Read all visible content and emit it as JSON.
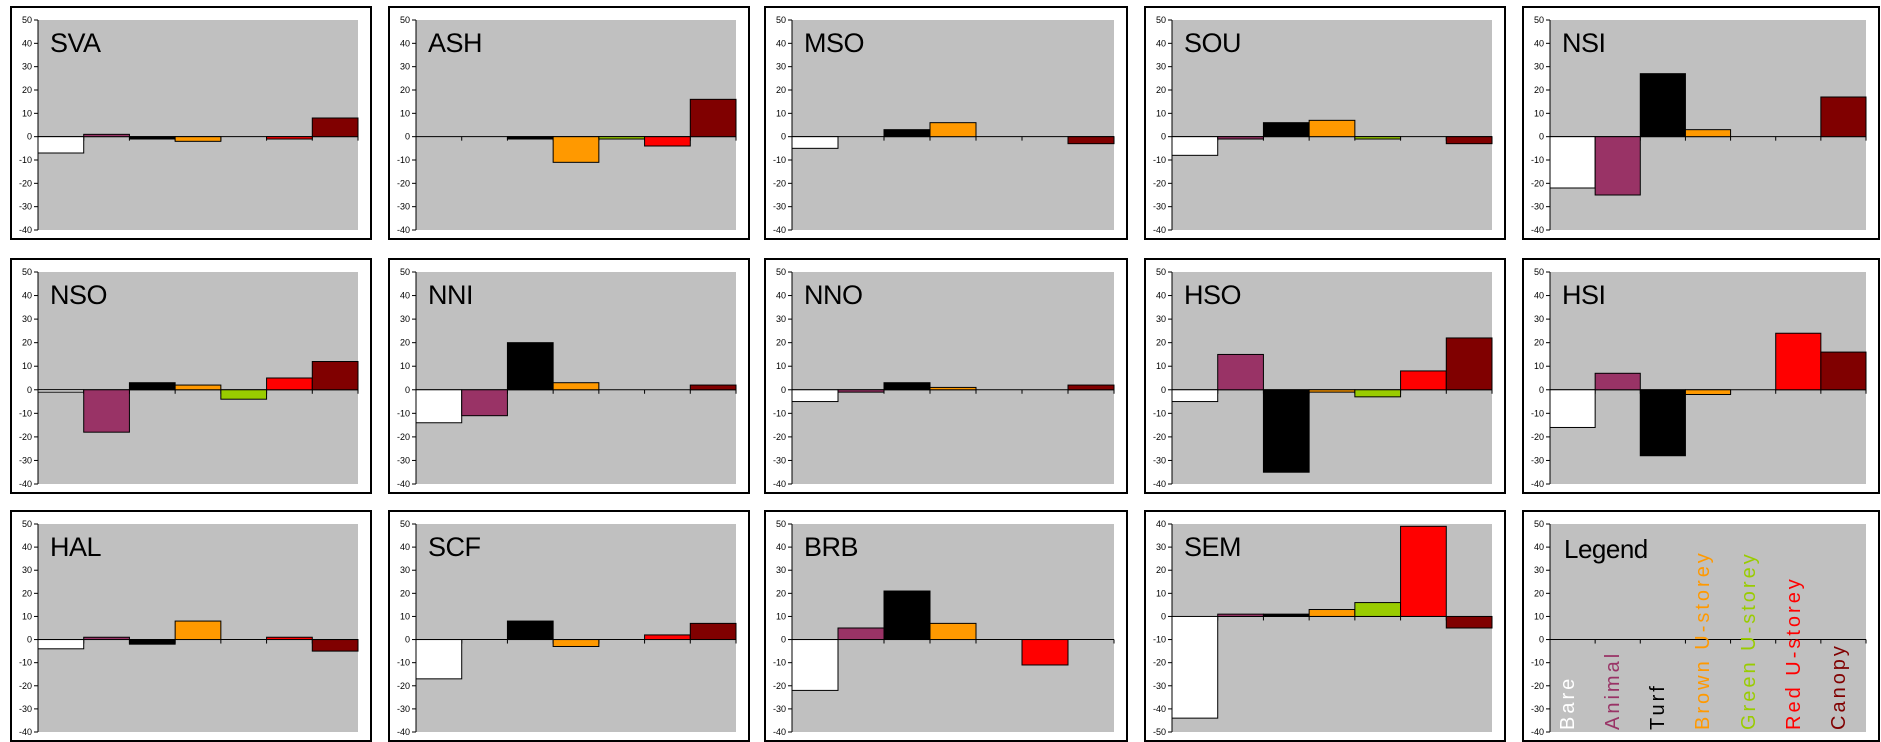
{
  "chart_data": [
    {
      "type": "bar",
      "title": "SVA",
      "ylim": [
        -40,
        50
      ],
      "values": [
        -7,
        1,
        -1,
        -2,
        null,
        -1,
        8
      ]
    },
    {
      "type": "bar",
      "title": "ASH",
      "ylim": [
        -40,
        50
      ],
      "values": [
        null,
        null,
        -1,
        -11,
        -1,
        -4,
        16
      ]
    },
    {
      "type": "bar",
      "title": "MSO",
      "ylim": [
        -40,
        50
      ],
      "values": [
        -5,
        null,
        3,
        6,
        null,
        null,
        -3
      ]
    },
    {
      "type": "bar",
      "title": "SOU",
      "ylim": [
        -40,
        50
      ],
      "values": [
        -8,
        -1,
        6,
        7,
        -1,
        null,
        -3
      ]
    },
    {
      "type": "bar",
      "title": "NSI",
      "ylim": [
        -40,
        50
      ],
      "values": [
        -22,
        -25,
        27,
        3,
        null,
        null,
        17
      ]
    },
    {
      "type": "bar",
      "title": "NSO",
      "ylim": [
        -40,
        50
      ],
      "values": [
        -1,
        -18,
        3,
        2,
        -4,
        5,
        12
      ]
    },
    {
      "type": "bar",
      "title": "NNI",
      "ylim": [
        -40,
        50
      ],
      "values": [
        -14,
        -11,
        20,
        3,
        null,
        null,
        2
      ]
    },
    {
      "type": "bar",
      "title": "NNO",
      "ylim": [
        -40,
        50
      ],
      "values": [
        -5,
        -1,
        3,
        1,
        null,
        null,
        2
      ]
    },
    {
      "type": "bar",
      "title": "HSO",
      "ylim": [
        -40,
        50
      ],
      "values": [
        -5,
        15,
        -35,
        -1,
        -3,
        8,
        22
      ]
    },
    {
      "type": "bar",
      "title": "HSI",
      "ylim": [
        -40,
        50
      ],
      "values": [
        -16,
        7,
        -28,
        -2,
        null,
        24,
        16
      ]
    },
    {
      "type": "bar",
      "title": "HAL",
      "ylim": [
        -40,
        50
      ],
      "values": [
        -4,
        1,
        -2,
        8,
        null,
        1,
        -5
      ]
    },
    {
      "type": "bar",
      "title": "SCF",
      "ylim": [
        -40,
        50
      ],
      "values": [
        -17,
        null,
        8,
        -3,
        null,
        2,
        7
      ]
    },
    {
      "type": "bar",
      "title": "BRB",
      "ylim": [
        -40,
        50
      ],
      "values": [
        -22,
        5,
        21,
        7,
        null,
        -11,
        null
      ]
    },
    {
      "type": "bar",
      "title": "SEM",
      "ylim": [
        -50,
        40
      ],
      "values": [
        -44,
        1,
        1,
        3,
        6,
        39,
        -5
      ]
    }
  ],
  "series_colors": [
    "#ffffff",
    "#993366",
    "#000000",
    "#ff9900",
    "#99cc00",
    "#ff0000",
    "#800000"
  ],
  "legend": {
    "title": "Legend",
    "ylim": [
      -40,
      50
    ],
    "items": [
      {
        "label": "Bare",
        "color": "#ffffff"
      },
      {
        "label": "Animal",
        "color": "#993366"
      },
      {
        "label": "Turf",
        "color": "#000000"
      },
      {
        "label": "Brown U-storey",
        "color": "#ff9900"
      },
      {
        "label": "Green U-storey",
        "color": "#99cc00"
      },
      {
        "label": "Red U-storey",
        "color": "#ff0000"
      },
      {
        "label": "Canopy",
        "color": "#800000"
      }
    ]
  },
  "plot_bg": "#c0c0c0"
}
